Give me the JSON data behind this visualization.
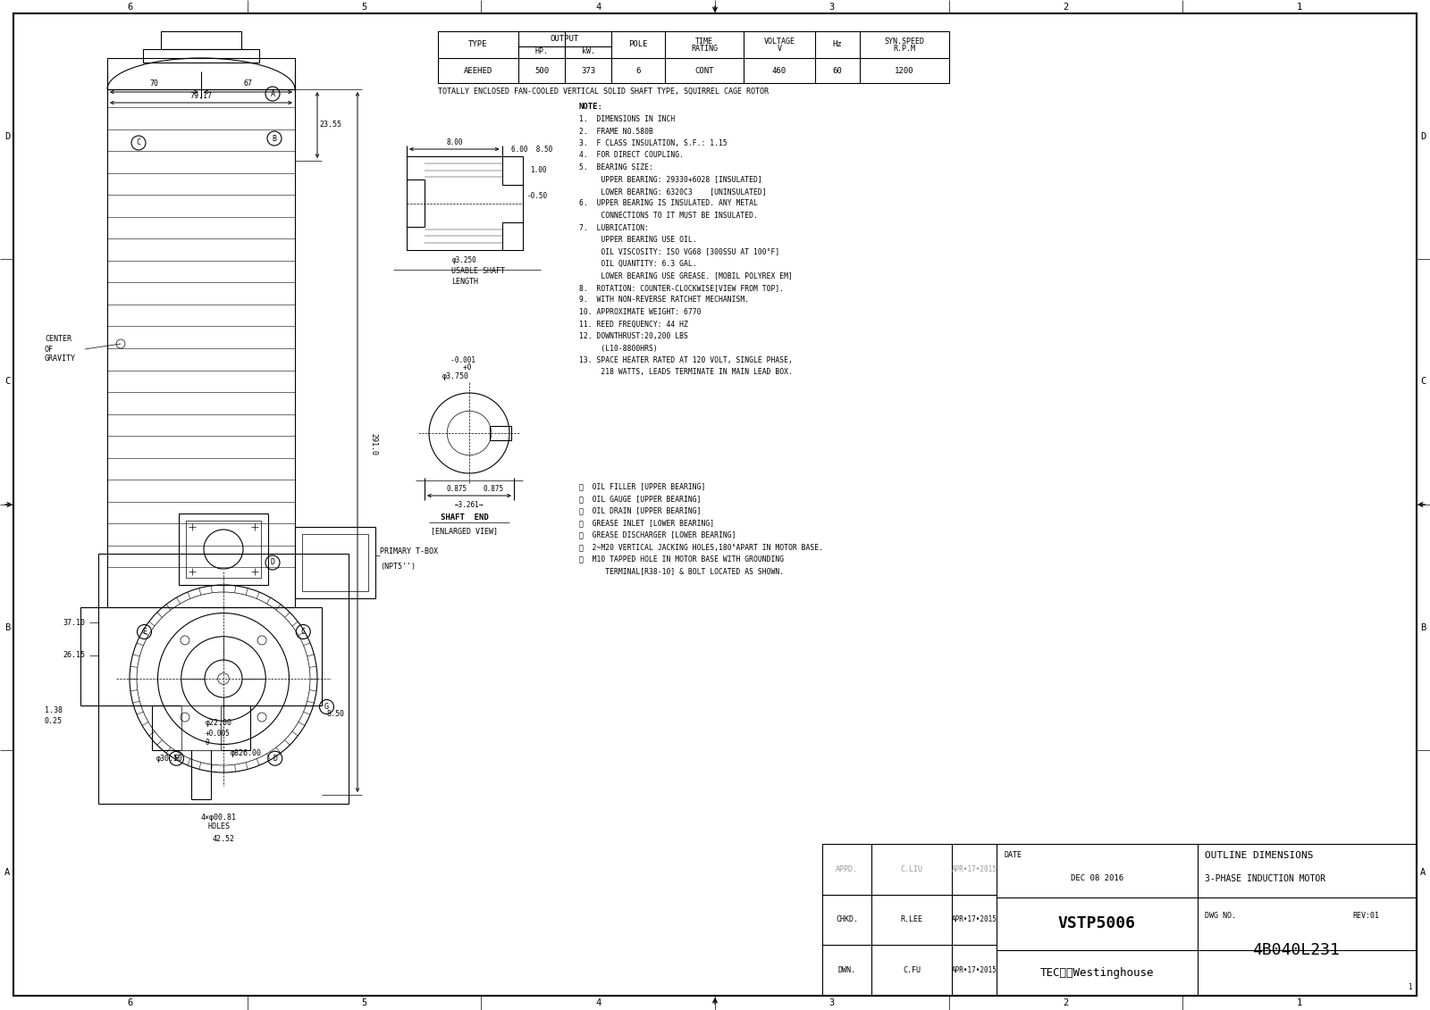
{
  "bg_color": "#ffffff",
  "line_color": "#000000",
  "spec_table": {
    "type": "AEEHED",
    "hp": "500",
    "kw": "373",
    "pole": "6",
    "time_rating": "CONT",
    "voltage": "460",
    "hz": "60",
    "syn_speed": "1200"
  },
  "description": "TOTALLY ENCLOSED FAN-COOLED VERTICAL SOLID SHAFT TYPE, SQUIRREL CAGE ROTOR",
  "notes": [
    "1.  DIMENSIONS IN INCH",
    "2.  FRAME NO.580B",
    "3.  F CLASS INSULATION, S.F.: 1.15",
    "4.  FOR DIRECT COUPLING.",
    "5.  BEARING SIZE:",
    "     UPPER BEARING: 29330+6028 [INSULATED]",
    "     LOWER BEARING: 6320C3    [UNINSULATED]",
    "6.  UPPER BEARING IS INSULATED. ANY METAL",
    "     CONNECTIONS TO IT MUST BE INSULATED.",
    "7.  LUBRICATION:",
    "     UPPER BEARING USE OIL.",
    "     OIL VISCOSITY: ISO VG68 [300SSU AT 100°F]",
    "     OIL QUANTITY: 6.3 GAL.",
    "     LOWER BEARING USE GREASE. [MOBIL POLYREX EM]",
    "8.  ROTATION: COUNTER-CLOCKWISE[VIEW FROM TOP].",
    "9.  WITH NON-REVERSE RATCHET MECHANISM.",
    "10. APPROXIMATE WEIGHT: 6770",
    "11. REED FREQUENCY: 44 HZ",
    "12. DOWNTHRUST:20,200 LBS",
    "     (L10-8800HRS)",
    "13. SPACE HEATER RATED AT 120 VOLT, SINGLE PHASE,",
    "     218 WATTS, LEADS TERMINATE IN MAIN LEAD BOX."
  ],
  "legends": [
    "Ⓐ  OIL FILLER [UPPER BEARING]",
    "Ⓑ  OIL GAUGE [UPPER BEARING]",
    "Ⓒ  OIL DRAIN [UPPER BEARING]",
    "Ⓓ  GREASE INLET [LOWER BEARING]",
    "Ⓔ  GREASE DISCHARGER [LOWER BEARING]",
    "Ⓕ  2~M20 VERTICAL JACKING HOLES,180°APART IN MOTOR BASE.",
    "Ⓖ  M10 TAPPED HOLE IN MOTOR BASE WITH GROUNDING",
    "      TERMINAL[R38-10] & BOLT LOCATED AS SHOWN."
  ]
}
